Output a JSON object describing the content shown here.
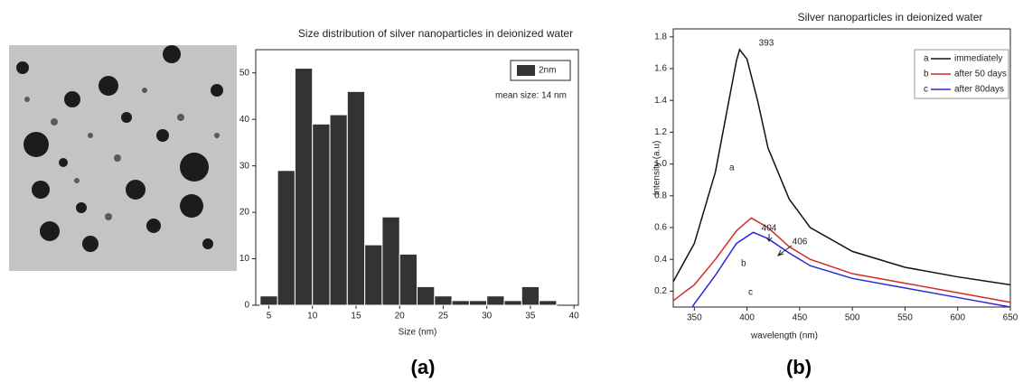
{
  "chart_data": [
    {
      "type": "histogram",
      "title": "Size distribution of silver nanoparticles in deionized water",
      "x_label": "Size (nm)",
      "panel_label": "(a)",
      "bins": [
        4,
        6,
        8,
        10,
        12,
        14,
        16,
        18,
        20,
        22,
        24,
        26,
        28,
        30,
        32,
        34,
        36,
        38
      ],
      "counts": [
        2,
        29,
        51,
        39,
        41,
        46,
        13,
        19,
        11,
        4,
        2,
        1,
        1,
        2,
        1,
        4,
        1
      ],
      "color": "#333333",
      "legend": "2nm",
      "annotation": "mean size: 14 nm",
      "xlim": [
        3.5,
        40.5
      ],
      "xticks": [
        5,
        10,
        15,
        20,
        25,
        30,
        35,
        40
      ],
      "ylim": [
        0,
        55
      ],
      "yticks": [
        0,
        10,
        20,
        30,
        40,
        50
      ]
    },
    {
      "type": "line",
      "title": "Silver nanoparticles in deionized water",
      "x_label": "wavelength (nm)",
      "y_label": "Intensity (a.u)",
      "panel_label": "(b)",
      "series": [
        {
          "name": "immediately",
          "label": "a",
          "color": "#111111",
          "x": [
            330,
            350,
            370,
            380,
            390,
            393,
            400,
            410,
            420,
            440,
            460,
            500,
            550,
            600,
            650
          ],
          "values": [
            0.26,
            0.5,
            0.95,
            1.3,
            1.65,
            1.72,
            1.66,
            1.4,
            1.1,
            0.78,
            0.6,
            0.45,
            0.35,
            0.29,
            0.24
          ]
        },
        {
          "name": "after 50 days",
          "label": "b",
          "color": "#d42a2a",
          "x": [
            330,
            350,
            370,
            390,
            404,
            420,
            440,
            460,
            500,
            550,
            600,
            650
          ],
          "values": [
            0.14,
            0.24,
            0.4,
            0.58,
            0.66,
            0.6,
            0.48,
            0.4,
            0.31,
            0.25,
            0.19,
            0.13
          ]
        },
        {
          "name": "after 80days",
          "label": "c",
          "color": "#2a2ad4",
          "x": [
            348,
            350,
            370,
            390,
            406,
            420,
            440,
            460,
            500,
            550,
            600,
            650
          ],
          "values": [
            0.1,
            0.12,
            0.3,
            0.5,
            0.57,
            0.53,
            0.44,
            0.36,
            0.28,
            0.22,
            0.16,
            0.1
          ]
        }
      ],
      "annotations": [
        "393",
        "404",
        "406"
      ],
      "xlim": [
        330,
        650
      ],
      "xticks": [
        350,
        400,
        450,
        500,
        550,
        600,
        650
      ],
      "ylim": [
        0.1,
        1.85
      ],
      "yticks": [
        0.2,
        0.4,
        0.6,
        0.8,
        {
          "value": 1,
          "label": "1.0"
        },
        1.2,
        1.4,
        1.6,
        1.8
      ]
    }
  ]
}
